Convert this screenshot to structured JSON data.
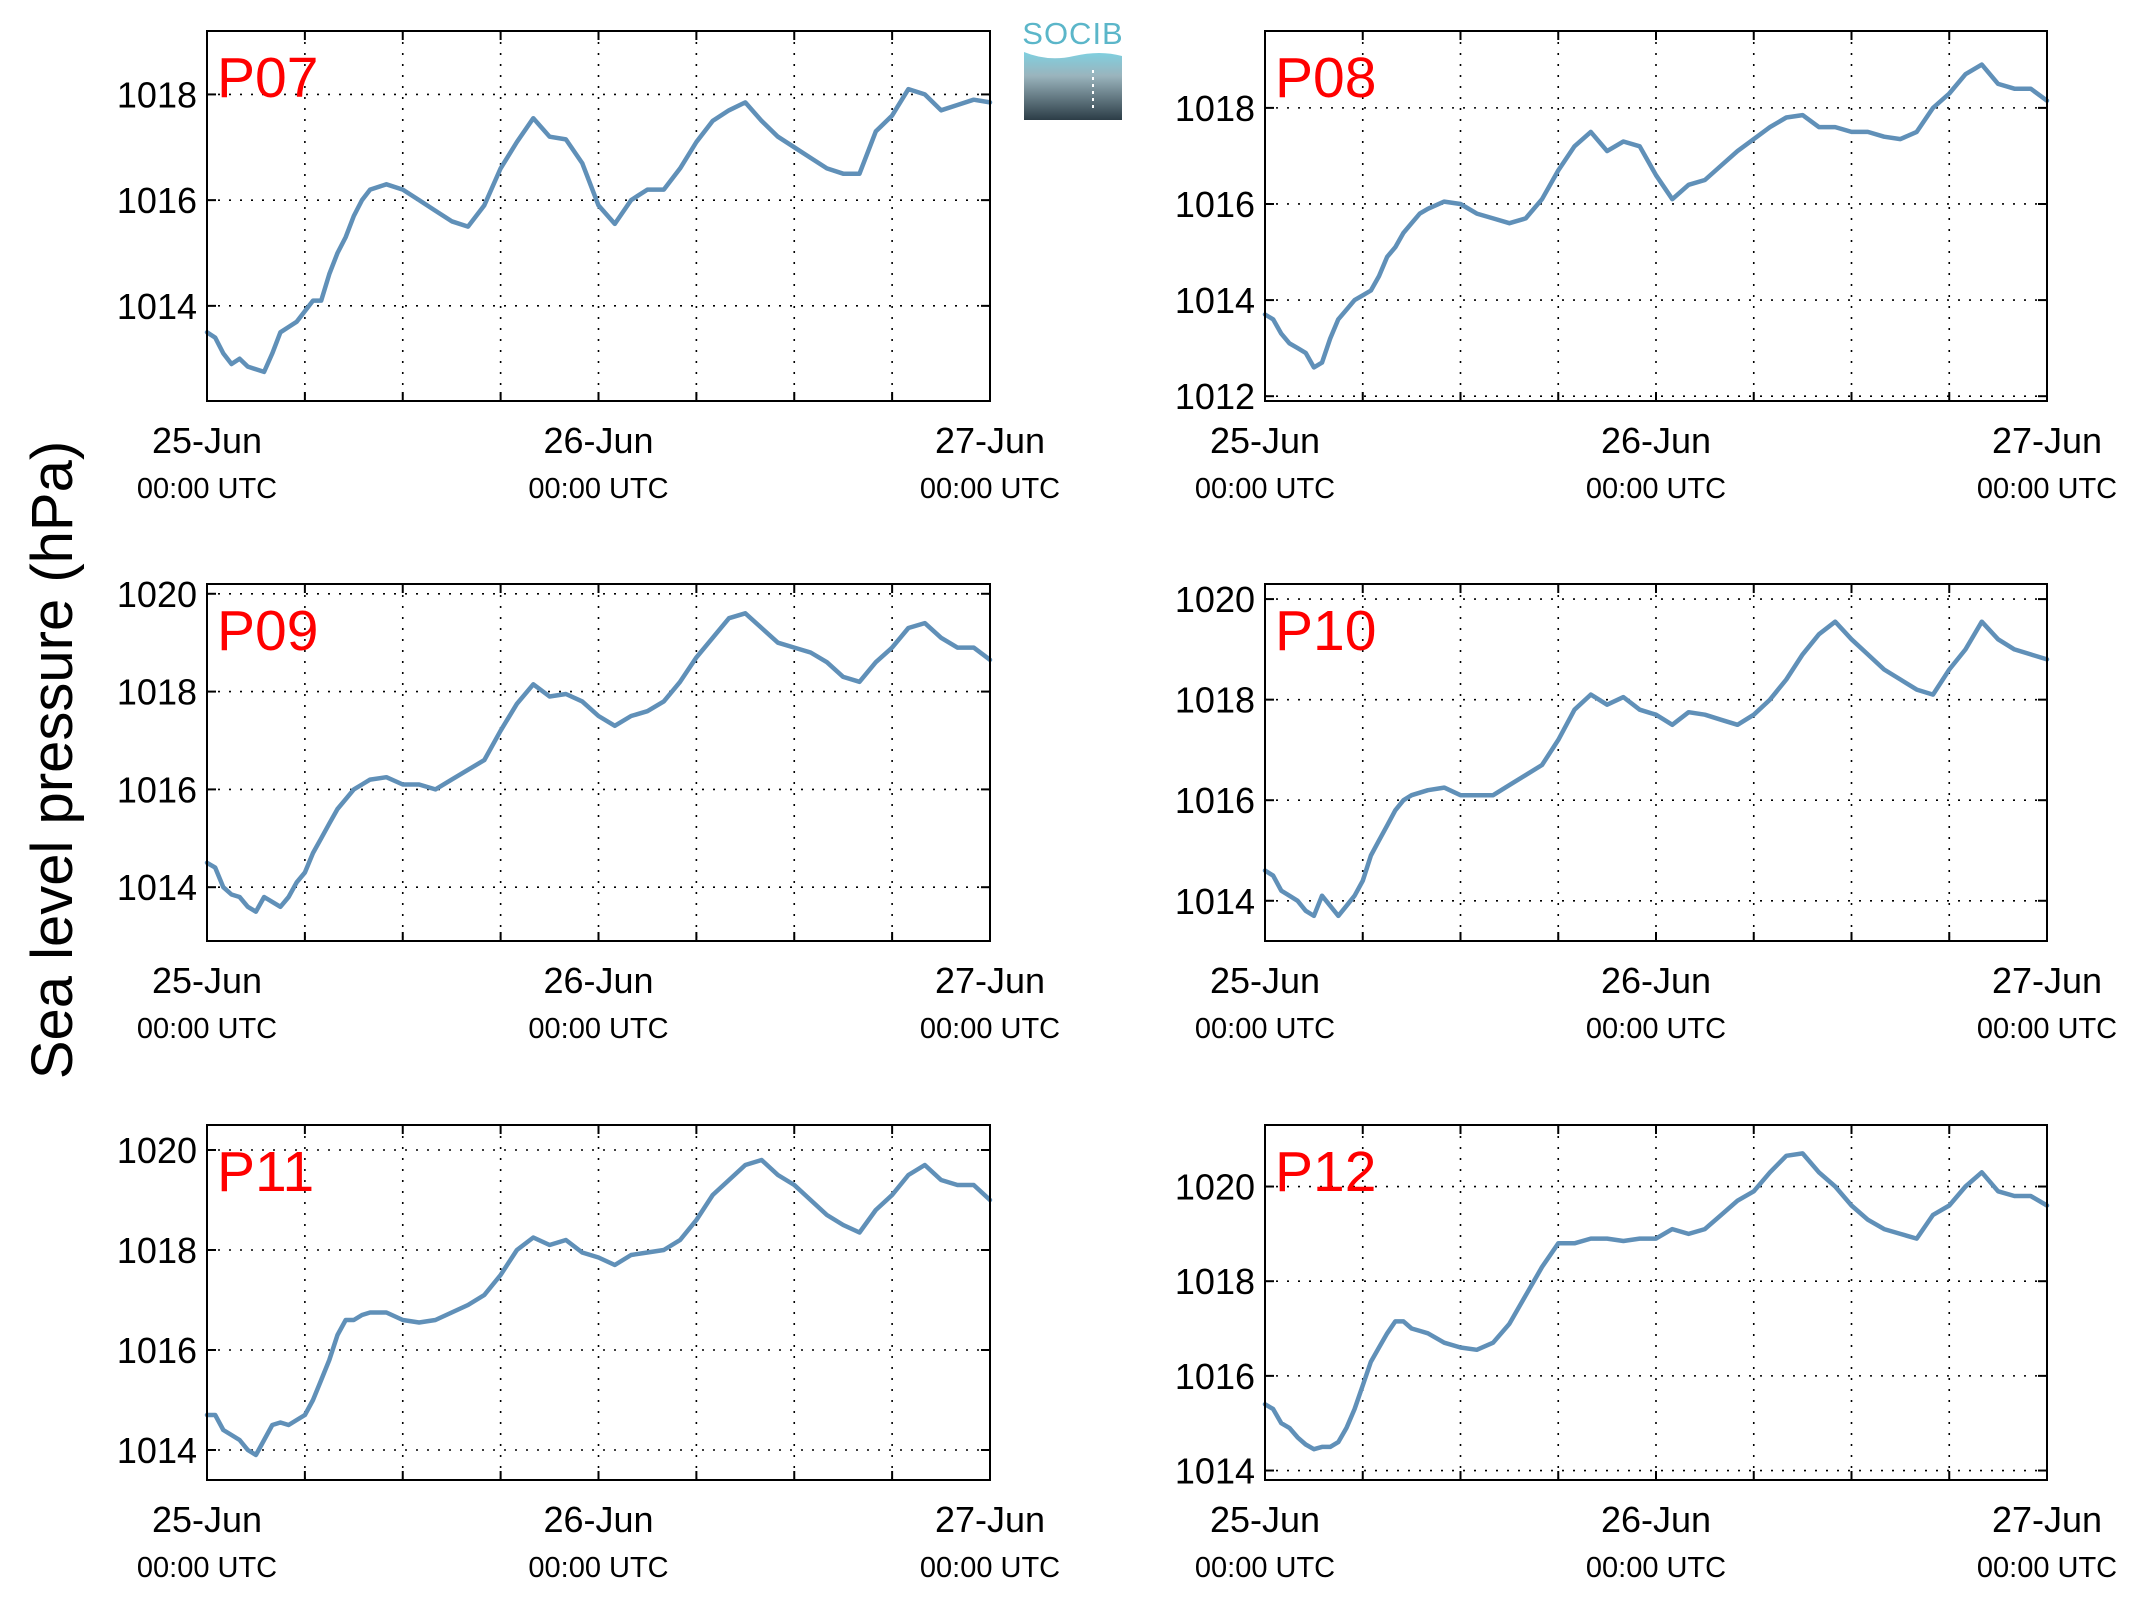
{
  "figure": {
    "ylabel": "Sea level pressure (hPa)",
    "logo_text": "SOCIB"
  },
  "colors": {
    "line": "#6090b8",
    "panel_label": "#ff0000",
    "axis": "#000000",
    "grid": "#000000"
  },
  "chart_data": [
    {
      "type": "line",
      "label": "P07",
      "x_ticks": [
        {
          "main": "25-Jun",
          "sub": "00:00 UTC"
        },
        {
          "main": "26-Jun",
          "sub": "00:00 UTC"
        },
        {
          "main": "27-Jun",
          "sub": "00:00 UTC"
        }
      ],
      "xlim_hours": [
        0,
        48
      ],
      "ylim": [
        1012.2,
        1019.2
      ],
      "yticks": [
        1014,
        1016,
        1018
      ],
      "grid": true,
      "series": [
        {
          "x_hours": [
            0,
            0.5,
            1,
            1.5,
            2,
            2.5,
            3,
            3.5,
            4,
            4.5,
            5,
            5.5,
            6,
            6.5,
            7,
            7.5,
            8,
            8.5,
            9,
            9.5,
            10,
            11,
            12,
            13,
            14,
            15,
            16,
            17,
            18,
            19,
            20,
            21,
            22,
            23,
            24,
            25,
            26,
            27,
            28,
            29,
            30,
            31,
            32,
            33,
            34,
            35,
            36,
            37,
            38,
            39,
            40,
            41,
            42,
            43,
            44,
            45,
            46,
            47,
            48
          ],
          "values": [
            1013.5,
            1013.4,
            1013.1,
            1012.9,
            1013.0,
            1012.85,
            1012.8,
            1012.75,
            1013.1,
            1013.5,
            1013.6,
            1013.7,
            1013.9,
            1014.1,
            1014.1,
            1014.6,
            1015.0,
            1015.3,
            1015.7,
            1016.0,
            1016.2,
            1016.3,
            1016.2,
            1016.0,
            1015.8,
            1015.6,
            1015.5,
            1015.9,
            1016.6,
            1017.1,
            1017.55,
            1017.2,
            1017.15,
            1016.7,
            1015.9,
            1015.55,
            1016.0,
            1016.2,
            1016.2,
            1016.6,
            1017.1,
            1017.5,
            1017.7,
            1017.85,
            1017.5,
            1017.2,
            1017.0,
            1016.8,
            1016.6,
            1016.5,
            1016.5,
            1017.3,
            1017.6,
            1018.1,
            1018.0,
            1017.7,
            1017.8,
            1017.9,
            1017.85
          ]
        }
      ]
    },
    {
      "type": "line",
      "label": "P08",
      "x_ticks": [
        {
          "main": "25-Jun",
          "sub": "00:00 UTC"
        },
        {
          "main": "26-Jun",
          "sub": "00:00 UTC"
        },
        {
          "main": "27-Jun",
          "sub": "00:00 UTC"
        }
      ],
      "xlim_hours": [
        0,
        48
      ],
      "ylim": [
        1011.9,
        1019.6
      ],
      "yticks": [
        1012,
        1014,
        1016,
        1018
      ],
      "grid": true,
      "series": [
        {
          "x_hours": [
            0,
            0.5,
            1,
            1.5,
            2,
            2.5,
            3,
            3.5,
            4,
            4.5,
            5,
            5.5,
            6,
            6.5,
            7,
            7.5,
            8,
            8.5,
            9,
            9.5,
            10,
            11,
            12,
            13,
            14,
            15,
            16,
            17,
            18,
            19,
            20,
            21,
            22,
            23,
            24,
            25,
            26,
            27,
            28,
            29,
            30,
            31,
            32,
            33,
            34,
            35,
            36,
            37,
            38,
            39,
            40,
            41,
            42,
            43,
            44,
            45,
            46,
            47,
            48
          ],
          "values": [
            1013.7,
            1013.6,
            1013.3,
            1013.1,
            1013.0,
            1012.9,
            1012.6,
            1012.7,
            1013.2,
            1013.6,
            1013.8,
            1014.0,
            1014.1,
            1014.2,
            1014.5,
            1014.9,
            1015.1,
            1015.4,
            1015.6,
            1015.8,
            1015.9,
            1016.05,
            1016.0,
            1015.8,
            1015.7,
            1015.6,
            1015.7,
            1016.1,
            1016.7,
            1017.2,
            1017.5,
            1017.1,
            1017.3,
            1017.2,
            1016.6,
            1016.1,
            1016.4,
            1016.5,
            1016.8,
            1017.1,
            1017.35,
            1017.6,
            1017.8,
            1017.85,
            1017.6,
            1017.6,
            1017.5,
            1017.5,
            1017.4,
            1017.35,
            1017.5,
            1018.0,
            1018.3,
            1018.7,
            1018.9,
            1018.5,
            1018.4,
            1018.4,
            1018.15
          ]
        }
      ]
    },
    {
      "type": "line",
      "label": "P09",
      "x_ticks": [
        {
          "main": "25-Jun",
          "sub": "00:00 UTC"
        },
        {
          "main": "26-Jun",
          "sub": "00:00 UTC"
        },
        {
          "main": "27-Jun",
          "sub": "00:00 UTC"
        }
      ],
      "xlim_hours": [
        0,
        48
      ],
      "ylim": [
        1012.9,
        1020.2
      ],
      "yticks": [
        1014,
        1016,
        1018,
        1020
      ],
      "grid": true,
      "series": [
        {
          "x_hours": [
            0,
            0.5,
            1,
            1.5,
            2,
            2.5,
            3,
            3.5,
            4,
            4.5,
            5,
            5.5,
            6,
            6.5,
            7,
            7.5,
            8,
            8.5,
            9,
            9.5,
            10,
            11,
            12,
            13,
            14,
            15,
            16,
            17,
            18,
            19,
            20,
            21,
            22,
            23,
            24,
            25,
            26,
            27,
            28,
            29,
            30,
            31,
            32,
            33,
            34,
            35,
            36,
            37,
            38,
            39,
            40,
            41,
            42,
            43,
            44,
            45,
            46,
            47,
            48
          ],
          "values": [
            1014.5,
            1014.4,
            1014.0,
            1013.85,
            1013.8,
            1013.6,
            1013.5,
            1013.8,
            1013.7,
            1013.6,
            1013.8,
            1014.1,
            1014.3,
            1014.7,
            1015.0,
            1015.3,
            1015.6,
            1015.8,
            1016.0,
            1016.1,
            1016.2,
            1016.25,
            1016.1,
            1016.1,
            1016.0,
            1016.2,
            1016.4,
            1016.6,
            1017.2,
            1017.75,
            1018.15,
            1017.9,
            1017.95,
            1017.8,
            1017.5,
            1017.3,
            1017.5,
            1017.6,
            1017.8,
            1018.2,
            1018.7,
            1019.1,
            1019.5,
            1019.6,
            1019.3,
            1019.0,
            1018.9,
            1018.8,
            1018.6,
            1018.3,
            1018.2,
            1018.6,
            1018.9,
            1019.3,
            1019.4,
            1019.1,
            1018.9,
            1018.9,
            1018.65
          ]
        }
      ]
    },
    {
      "type": "line",
      "label": "P10",
      "x_ticks": [
        {
          "main": "25-Jun",
          "sub": "00:00 UTC"
        },
        {
          "main": "26-Jun",
          "sub": "00:00 UTC"
        },
        {
          "main": "27-Jun",
          "sub": "00:00 UTC"
        }
      ],
      "xlim_hours": [
        0,
        48
      ],
      "ylim": [
        1013.2,
        1020.3
      ],
      "yticks": [
        1014,
        1016,
        1018,
        1020
      ],
      "grid": true,
      "series": [
        {
          "x_hours": [
            0,
            0.5,
            1,
            1.5,
            2,
            2.5,
            3,
            3.5,
            4,
            4.5,
            5,
            5.5,
            6,
            6.5,
            7,
            7.5,
            8,
            8.5,
            9,
            9.5,
            10,
            11,
            12,
            13,
            14,
            15,
            16,
            17,
            18,
            19,
            20,
            21,
            22,
            23,
            24,
            25,
            26,
            27,
            28,
            29,
            30,
            31,
            32,
            33,
            34,
            35,
            36,
            37,
            38,
            39,
            40,
            41,
            42,
            43,
            44,
            45,
            46,
            47,
            48
          ],
          "values": [
            1014.6,
            1014.5,
            1014.2,
            1014.1,
            1014.0,
            1013.8,
            1013.7,
            1014.1,
            1013.9,
            1013.7,
            1013.9,
            1014.1,
            1014.4,
            1014.9,
            1015.2,
            1015.5,
            1015.8,
            1016.0,
            1016.1,
            1016.15,
            1016.2,
            1016.25,
            1016.1,
            1016.1,
            1016.1,
            1016.3,
            1016.5,
            1016.7,
            1017.2,
            1017.8,
            1018.1,
            1017.9,
            1018.05,
            1017.8,
            1017.7,
            1017.5,
            1017.75,
            1017.7,
            1017.6,
            1017.5,
            1017.7,
            1018.0,
            1018.4,
            1018.9,
            1019.3,
            1019.55,
            1019.2,
            1018.9,
            1018.6,
            1018.4,
            1018.2,
            1018.1,
            1018.6,
            1019.0,
            1019.55,
            1019.2,
            1019.0,
            1018.9,
            1018.8
          ]
        }
      ]
    },
    {
      "type": "line",
      "label": "P11",
      "x_ticks": [
        {
          "main": "25-Jun",
          "sub": "00:00 UTC"
        },
        {
          "main": "26-Jun",
          "sub": "00:00 UTC"
        },
        {
          "main": "27-Jun",
          "sub": "00:00 UTC"
        }
      ],
      "xlim_hours": [
        0,
        48
      ],
      "ylim": [
        1013.4,
        1020.5
      ],
      "yticks": [
        1014,
        1016,
        1018,
        1020
      ],
      "grid": true,
      "series": [
        {
          "x_hours": [
            0,
            0.5,
            1,
            1.5,
            2,
            2.5,
            3,
            3.5,
            4,
            4.5,
            5,
            5.5,
            6,
            6.5,
            7,
            7.5,
            8,
            8.5,
            9,
            9.5,
            10,
            11,
            12,
            13,
            14,
            15,
            16,
            17,
            18,
            19,
            20,
            21,
            22,
            23,
            24,
            25,
            26,
            27,
            28,
            29,
            30,
            31,
            32,
            33,
            34,
            35,
            36,
            37,
            38,
            39,
            40,
            41,
            42,
            43,
            44,
            45,
            46,
            47,
            48
          ],
          "values": [
            1014.7,
            1014.7,
            1014.4,
            1014.3,
            1014.2,
            1014.0,
            1013.9,
            1014.2,
            1014.5,
            1014.55,
            1014.5,
            1014.6,
            1014.7,
            1015.0,
            1015.4,
            1015.8,
            1016.3,
            1016.6,
            1016.6,
            1016.7,
            1016.75,
            1016.75,
            1016.6,
            1016.55,
            1016.6,
            1016.75,
            1016.9,
            1017.1,
            1017.5,
            1018.0,
            1018.25,
            1018.1,
            1018.2,
            1017.95,
            1017.85,
            1017.7,
            1017.9,
            1017.95,
            1018.0,
            1018.2,
            1018.6,
            1019.1,
            1019.4,
            1019.7,
            1019.8,
            1019.5,
            1019.3,
            1019.0,
            1018.7,
            1018.5,
            1018.35,
            1018.8,
            1019.1,
            1019.5,
            1019.7,
            1019.4,
            1019.3,
            1019.3,
            1019.0
          ]
        }
      ]
    },
    {
      "type": "line",
      "label": "P12",
      "x_ticks": [
        {
          "main": "25-Jun",
          "sub": "00:00 UTC"
        },
        {
          "main": "26-Jun",
          "sub": "00:00 UTC"
        },
        {
          "main": "27-Jun",
          "sub": "00:00 UTC"
        }
      ],
      "xlim_hours": [
        0,
        48
      ],
      "ylim": [
        1013.8,
        1021.3
      ],
      "yticks": [
        1014,
        1016,
        1018,
        1020
      ],
      "grid": true,
      "series": [
        {
          "x_hours": [
            0,
            0.5,
            1,
            1.5,
            2,
            2.5,
            3,
            3.5,
            4,
            4.5,
            5,
            5.5,
            6,
            6.5,
            7,
            7.5,
            8,
            8.5,
            9,
            9.5,
            10,
            11,
            12,
            13,
            14,
            15,
            16,
            17,
            18,
            19,
            20,
            21,
            22,
            23,
            24,
            25,
            26,
            27,
            28,
            29,
            30,
            31,
            32,
            33,
            34,
            35,
            36,
            37,
            38,
            39,
            40,
            41,
            42,
            43,
            44,
            45,
            46,
            47,
            48
          ],
          "values": [
            1015.4,
            1015.3,
            1015.0,
            1014.9,
            1014.7,
            1014.55,
            1014.45,
            1014.5,
            1014.5,
            1014.6,
            1014.9,
            1015.3,
            1015.8,
            1016.3,
            1016.6,
            1016.9,
            1017.15,
            1017.15,
            1017.0,
            1016.95,
            1016.9,
            1016.7,
            1016.6,
            1016.55,
            1016.7,
            1017.1,
            1017.7,
            1018.3,
            1018.8,
            1018.8,
            1018.9,
            1018.9,
            1018.85,
            1018.9,
            1018.9,
            1019.1,
            1019.0,
            1019.1,
            1019.4,
            1019.7,
            1019.9,
            1020.3,
            1020.65,
            1020.7,
            1020.3,
            1020.0,
            1019.6,
            1019.3,
            1019.1,
            1019.0,
            1018.9,
            1019.4,
            1019.6,
            1020.0,
            1020.3,
            1019.9,
            1019.8,
            1019.8,
            1019.6
          ]
        }
      ]
    }
  ]
}
